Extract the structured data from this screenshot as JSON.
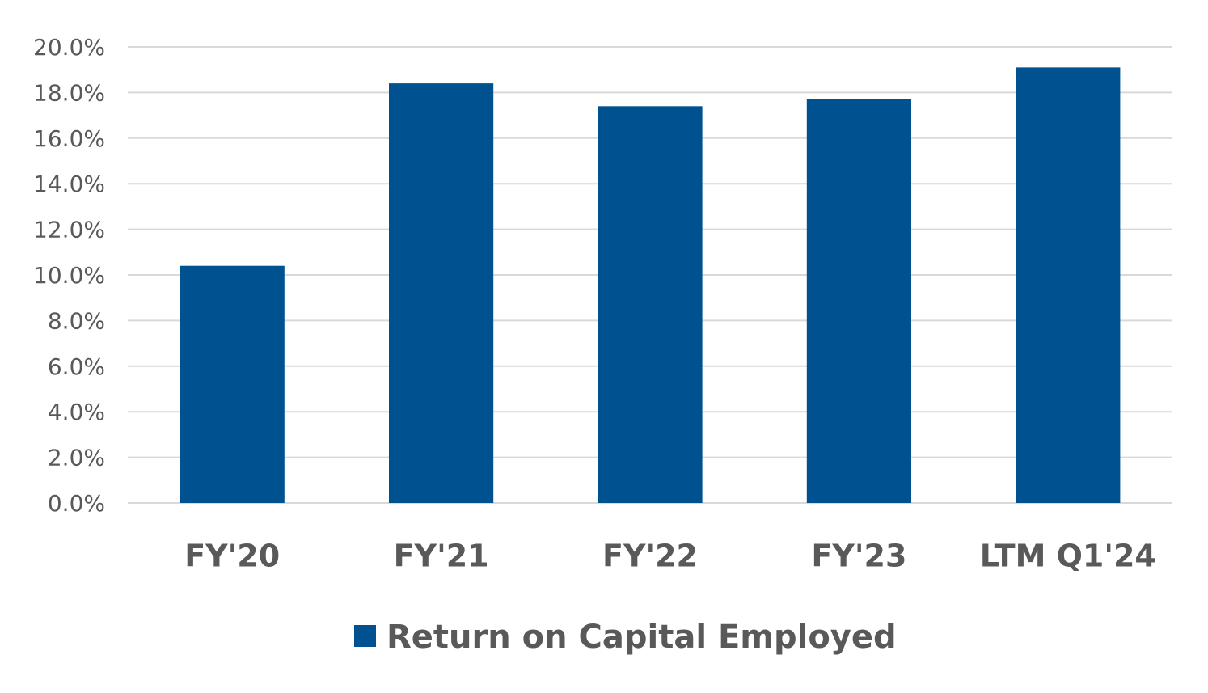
{
  "chart_data": {
    "type": "bar",
    "categories": [
      "FY'20",
      "FY'21",
      "FY'22",
      "FY'23",
      "LTM Q1'24"
    ],
    "series": [
      {
        "name": "Return on Capital Employed",
        "color": "#00518f",
        "values": [
          10.4,
          18.4,
          17.4,
          17.7,
          19.1
        ]
      }
    ],
    "ylim": [
      0,
      20
    ],
    "yticks": [
      {
        "value": 0,
        "label": "0.0%"
      },
      {
        "value": 2,
        "label": "2.0%"
      },
      {
        "value": 4,
        "label": "4.0%"
      },
      {
        "value": 6,
        "label": "6.0%"
      },
      {
        "value": 8,
        "label": "8.0%"
      },
      {
        "value": 10,
        "label": "10.0%"
      },
      {
        "value": 12,
        "label": "12.0%"
      },
      {
        "value": 14,
        "label": "14.0%"
      },
      {
        "value": 16,
        "label": "16.0%"
      },
      {
        "value": 18,
        "label": "18.0%"
      },
      {
        "value": 20,
        "label": "20.0%"
      }
    ],
    "grid": true,
    "legend": "bottom"
  }
}
